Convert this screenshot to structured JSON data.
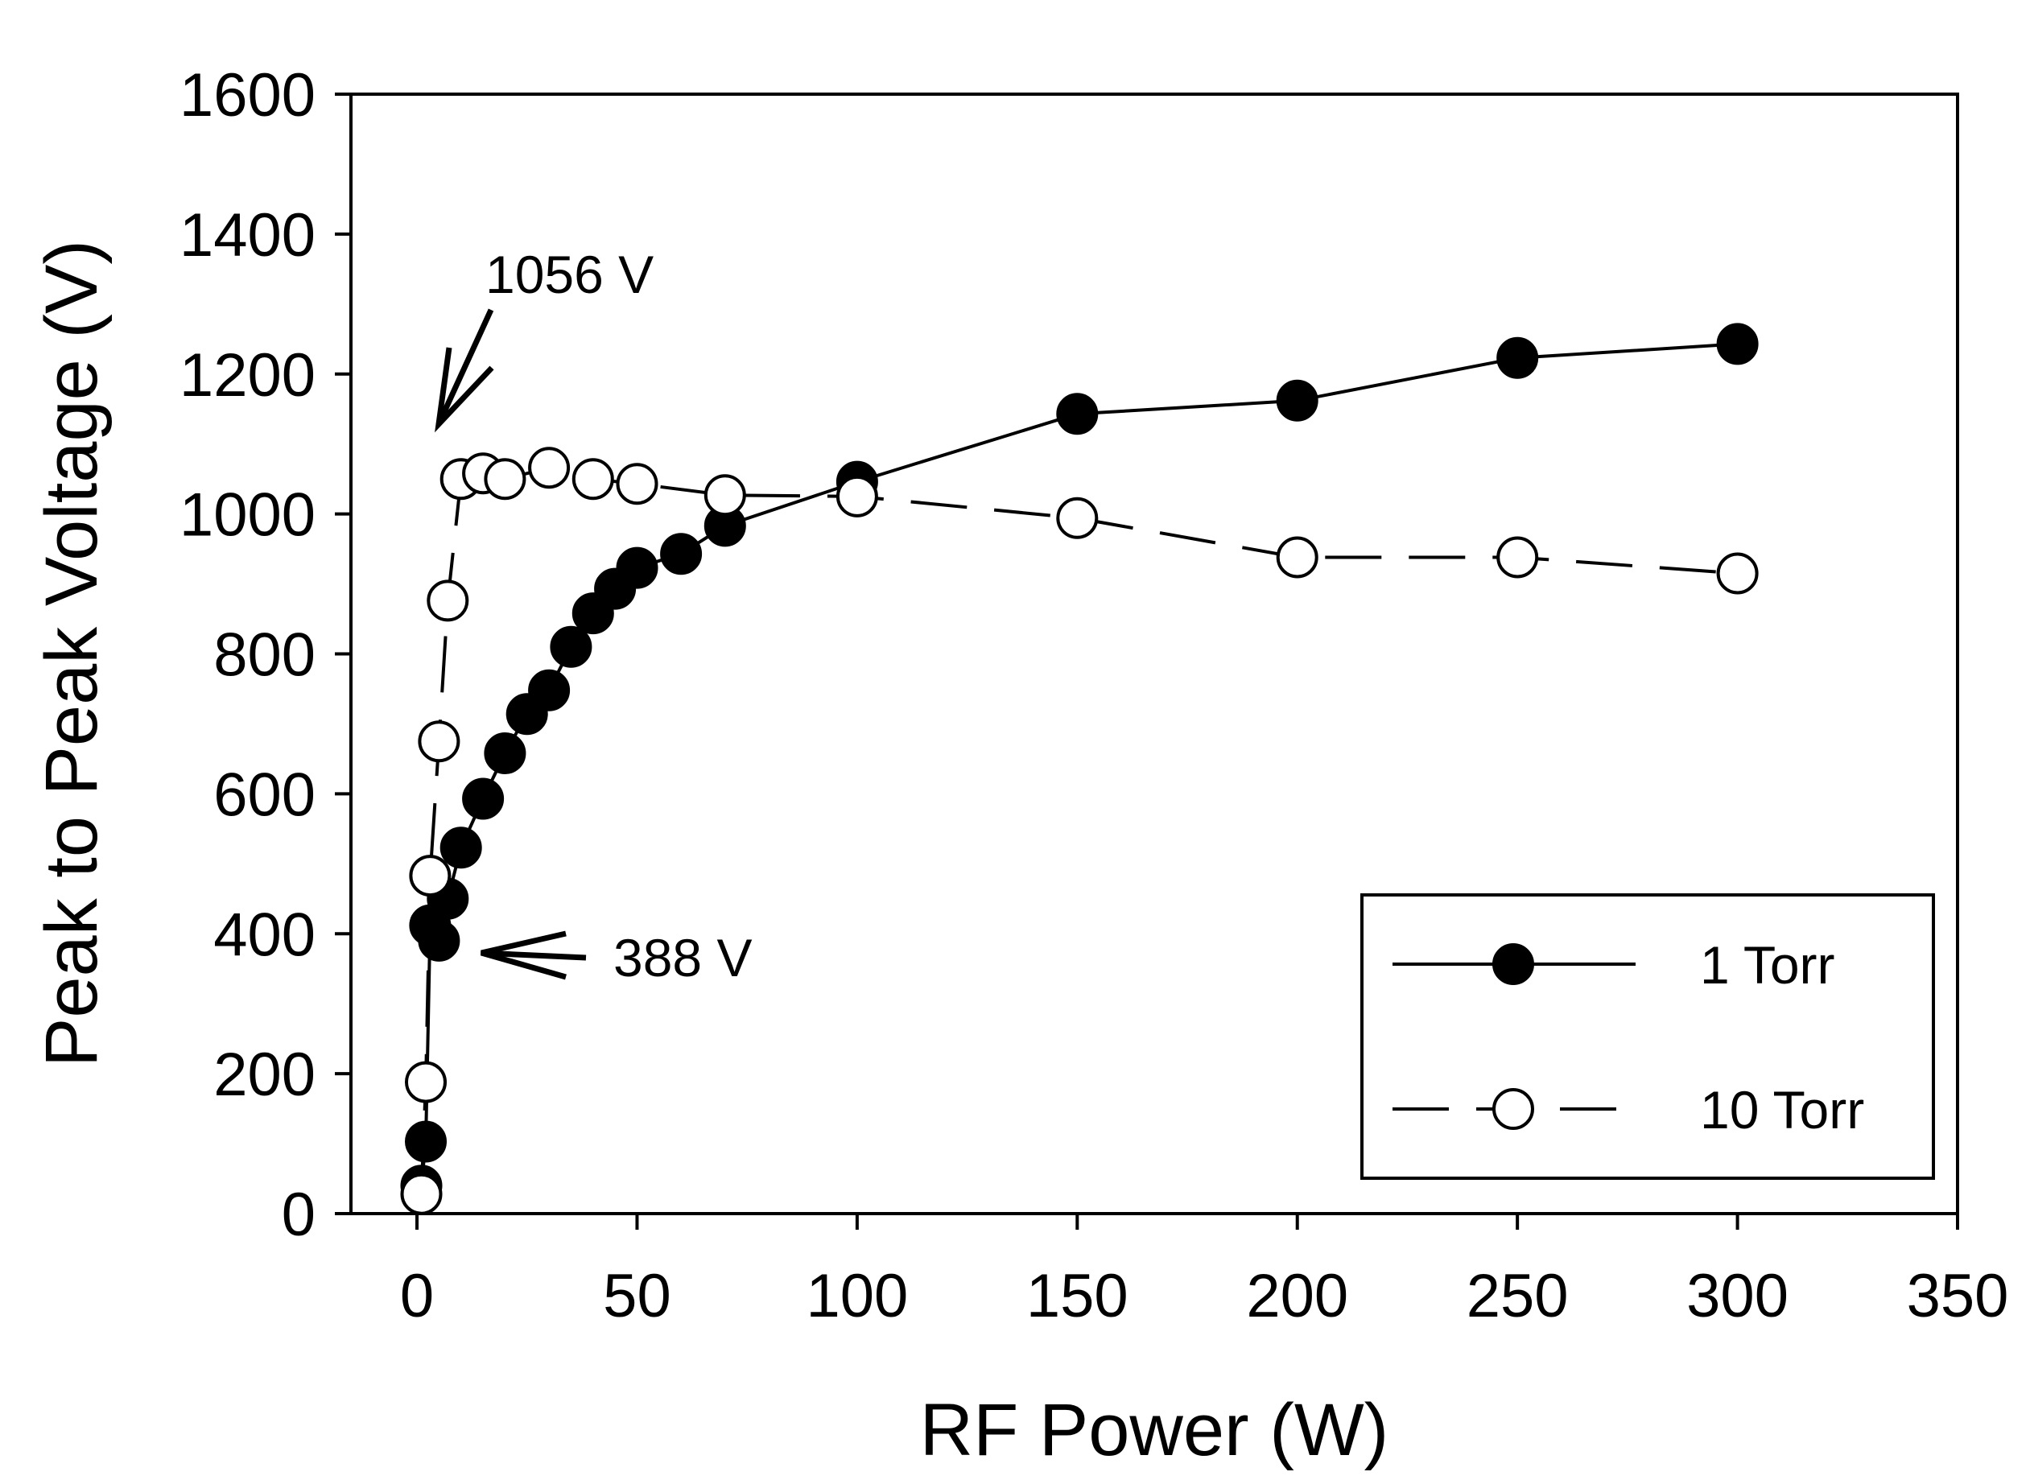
{
  "chart_data": {
    "type": "line",
    "xlabel": "RF Power (W)",
    "ylabel": "Peak to Peak Voltage (V)",
    "xlim": [
      -15,
      350
    ],
    "ylim": [
      0,
      1600
    ],
    "xticks": [
      0,
      50,
      100,
      150,
      200,
      250,
      300,
      350
    ],
    "yticks": [
      0,
      200,
      400,
      600,
      800,
      1000,
      1200,
      1400,
      1600
    ],
    "xtick_labels": [
      "0",
      "50",
      "100",
      "150",
      "200",
      "250",
      "300",
      "350"
    ],
    "ytick_labels": [
      "0",
      "200",
      "400",
      "600",
      "800",
      "1000",
      "1200",
      "1400",
      "1600"
    ],
    "grid": false,
    "legend_position": "bottom-right",
    "series": [
      {
        "name": "1 Torr",
        "marker": "filled-circle",
        "line": "solid",
        "points": [
          {
            "x": 1,
            "y": 40
          },
          {
            "x": 2,
            "y": 103
          },
          {
            "x": 3,
            "y": 412
          },
          {
            "x": 5,
            "y": 390
          },
          {
            "x": 7,
            "y": 450
          },
          {
            "x": 10,
            "y": 523
          },
          {
            "x": 15,
            "y": 593
          },
          {
            "x": 20,
            "y": 658
          },
          {
            "x": 25,
            "y": 714
          },
          {
            "x": 30,
            "y": 748
          },
          {
            "x": 35,
            "y": 810
          },
          {
            "x": 40,
            "y": 858
          },
          {
            "x": 45,
            "y": 893
          },
          {
            "x": 50,
            "y": 923
          },
          {
            "x": 60,
            "y": 943
          },
          {
            "x": 70,
            "y": 983
          },
          {
            "x": 100,
            "y": 1046
          },
          {
            "x": 150,
            "y": 1143
          },
          {
            "x": 200,
            "y": 1162
          },
          {
            "x": 250,
            "y": 1223
          },
          {
            "x": 300,
            "y": 1243
          }
        ]
      },
      {
        "name": "10 Torr",
        "marker": "open-circle",
        "line": "dashed",
        "points": [
          {
            "x": 1,
            "y": 28
          },
          {
            "x": 2,
            "y": 188
          },
          {
            "x": 3,
            "y": 483
          },
          {
            "x": 5,
            "y": 675
          },
          {
            "x": 7,
            "y": 876
          },
          {
            "x": 10,
            "y": 1050
          },
          {
            "x": 15,
            "y": 1058
          },
          {
            "x": 20,
            "y": 1050
          },
          {
            "x": 30,
            "y": 1066
          },
          {
            "x": 40,
            "y": 1050
          },
          {
            "x": 50,
            "y": 1043
          },
          {
            "x": 70,
            "y": 1027
          },
          {
            "x": 100,
            "y": 1025
          },
          {
            "x": 150,
            "y": 994
          },
          {
            "x": 200,
            "y": 938
          },
          {
            "x": 250,
            "y": 938
          },
          {
            "x": 300,
            "y": 915
          }
        ]
      }
    ],
    "annotations": [
      {
        "text": "1056 V",
        "points_to": {
          "x": 7,
          "y": 1110
        }
      },
      {
        "text": "388 V",
        "points_to": {
          "x": 16,
          "y": 388
        }
      }
    ]
  }
}
